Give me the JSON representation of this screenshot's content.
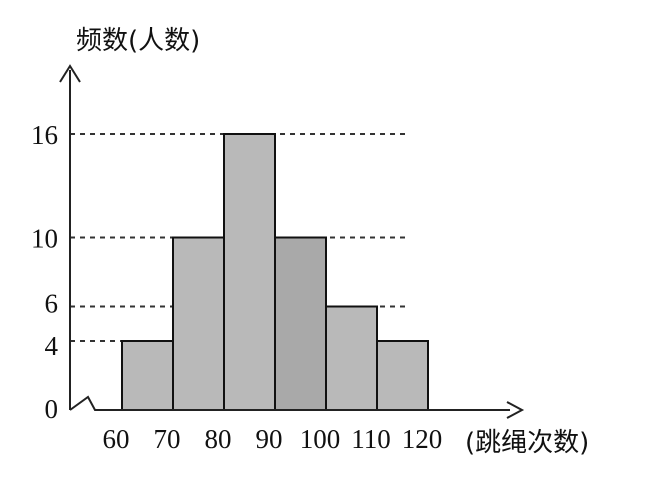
{
  "chart_data": {
    "type": "bar",
    "ylabel": "频数(人数)",
    "xlabel": "(跳绳次数)",
    "bins": [
      {
        "start": 60,
        "end": 70,
        "value": 4
      },
      {
        "start": 70,
        "end": 80,
        "value": 10
      },
      {
        "start": 80,
        "end": 90,
        "value": 16
      },
      {
        "start": 90,
        "end": 100,
        "value": 10
      },
      {
        "start": 100,
        "end": 110,
        "value": 6
      },
      {
        "start": 110,
        "end": 120,
        "value": 4
      }
    ],
    "x_tick_labels": [
      "60",
      "70",
      "80",
      "90",
      "100",
      "110",
      "120"
    ],
    "y_tick_labels": [
      "0",
      "4",
      "6",
      "10",
      "16"
    ],
    "ylim": [
      0,
      16
    ],
    "xlim": [
      60,
      120
    ],
    "grid": false
  }
}
